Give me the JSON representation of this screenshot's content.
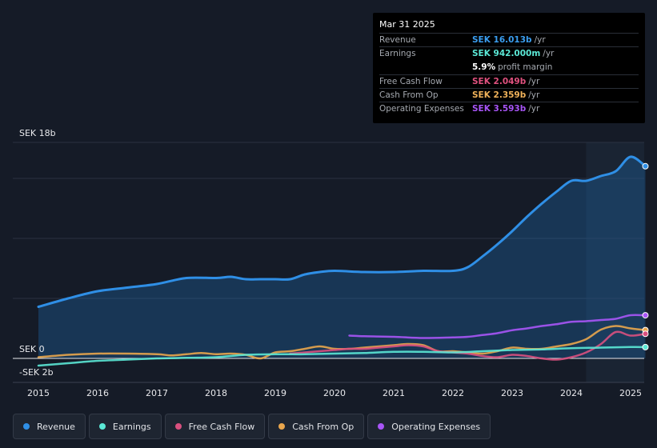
{
  "tooltip": {
    "date": "Mar 31 2025",
    "rows": [
      {
        "label": "Revenue",
        "value": "SEK 16.013b",
        "unit": "/yr",
        "color": "#3b9ef0"
      },
      {
        "label": "Earnings",
        "value": "SEK 942.000m",
        "unit": "/yr",
        "color": "#5be8d6"
      },
      {
        "label": "",
        "value": "5.9%",
        "unit": "profit margin",
        "color": "#ffffff"
      },
      {
        "label": "Free Cash Flow",
        "value": "SEK 2.049b",
        "unit": "/yr",
        "color": "#e0517f"
      },
      {
        "label": "Cash From Op",
        "value": "SEK 2.359b",
        "unit": "/yr",
        "color": "#f0b25a"
      },
      {
        "label": "Operating Expenses",
        "value": "SEK 3.593b",
        "unit": "/yr",
        "color": "#a855f7"
      }
    ]
  },
  "axis": {
    "top_label": "SEK 18b",
    "zero_label": "SEK 0",
    "bottom_label": "-SEK 2b"
  },
  "legend": [
    {
      "label": "Revenue",
      "color": "#2f8fe6"
    },
    {
      "label": "Earnings",
      "color": "#5be8d6"
    },
    {
      "label": "Free Cash Flow",
      "color": "#d9507f"
    },
    {
      "label": "Cash From Op",
      "color": "#e9a64d"
    },
    {
      "label": "Operating Expenses",
      "color": "#a855f7"
    }
  ],
  "chart_data": {
    "type": "line",
    "title": "",
    "xlabel": "",
    "ylabel": "SEK",
    "ylim": [
      -2,
      18
    ],
    "unit": "SEK billions",
    "x_ticks": [
      "2015",
      "2016",
      "2017",
      "2018",
      "2019",
      "2020",
      "2021",
      "2022",
      "2023",
      "2024",
      "2025"
    ],
    "forecast_from": 2024.25,
    "series": [
      {
        "name": "Revenue",
        "color": "#2f8fe6",
        "x": [
          2015.0,
          2015.5,
          2016.0,
          2016.5,
          2017.0,
          2017.5,
          2018.0,
          2018.25,
          2018.5,
          2018.75,
          2019.0,
          2019.25,
          2019.5,
          2019.75,
          2020.0,
          2020.5,
          2021.0,
          2021.5,
          2022.0,
          2022.25,
          2022.5,
          2022.75,
          2023.0,
          2023.25,
          2023.5,
          2023.75,
          2024.0,
          2024.25,
          2024.5,
          2024.75,
          2025.0,
          2025.25
        ],
        "y": [
          4.3,
          5.0,
          5.6,
          5.9,
          6.2,
          6.7,
          6.7,
          6.8,
          6.6,
          6.6,
          6.6,
          6.6,
          7.0,
          7.2,
          7.3,
          7.2,
          7.2,
          7.3,
          7.3,
          7.6,
          8.5,
          9.5,
          10.6,
          11.8,
          12.9,
          13.9,
          14.8,
          14.8,
          15.2,
          15.6,
          16.8,
          16.013
        ]
      },
      {
        "name": "Earnings",
        "color": "#5be8d6",
        "x": [
          2015.0,
          2015.5,
          2016.0,
          2016.5,
          2017.0,
          2017.5,
          2018.0,
          2018.5,
          2019.0,
          2019.5,
          2020.0,
          2020.5,
          2021.0,
          2021.5,
          2022.0,
          2022.5,
          2023.0,
          2023.5,
          2024.0,
          2024.5,
          2025.0,
          2025.25
        ],
        "y": [
          -0.6,
          -0.4,
          -0.2,
          -0.1,
          0.0,
          0.05,
          0.1,
          0.3,
          0.35,
          0.35,
          0.4,
          0.45,
          0.55,
          0.55,
          0.5,
          0.6,
          0.7,
          0.75,
          0.85,
          0.9,
          0.95,
          0.942
        ]
      },
      {
        "name": "Free Cash Flow",
        "color": "#d9507f",
        "x": [
          2019.25,
          2019.5,
          2019.75,
          2020.0,
          2020.25,
          2020.5,
          2020.75,
          2021.0,
          2021.25,
          2021.5,
          2021.75,
          2022.0,
          2022.25,
          2022.5,
          2022.75,
          2023.0,
          2023.25,
          2023.5,
          2023.75,
          2024.0,
          2024.25,
          2024.5,
          2024.75,
          2025.0,
          2025.25
        ],
        "y": [
          0.4,
          0.5,
          0.6,
          0.7,
          0.8,
          0.8,
          0.9,
          1.0,
          1.1,
          1.0,
          0.6,
          0.5,
          0.4,
          0.2,
          0.1,
          0.3,
          0.2,
          0.0,
          -0.1,
          0.1,
          0.5,
          1.2,
          2.2,
          1.9,
          2.049
        ]
      },
      {
        "name": "Cash From Op",
        "color": "#e9a64d",
        "x": [
          2015.0,
          2015.5,
          2016.0,
          2016.5,
          2017.0,
          2017.25,
          2017.5,
          2017.75,
          2018.0,
          2018.25,
          2018.5,
          2018.75,
          2019.0,
          2019.25,
          2019.5,
          2019.75,
          2020.0,
          2020.25,
          2020.5,
          2020.75,
          2021.0,
          2021.25,
          2021.5,
          2021.75,
          2022.0,
          2022.25,
          2022.5,
          2022.75,
          2023.0,
          2023.25,
          2023.5,
          2023.75,
          2024.0,
          2024.25,
          2024.5,
          2024.75,
          2025.0,
          2025.25
        ],
        "y": [
          0.1,
          0.3,
          0.4,
          0.4,
          0.35,
          0.25,
          0.35,
          0.45,
          0.35,
          0.4,
          0.3,
          0.0,
          0.5,
          0.6,
          0.8,
          1.0,
          0.8,
          0.8,
          0.9,
          1.0,
          1.1,
          1.2,
          1.1,
          0.6,
          0.6,
          0.5,
          0.4,
          0.6,
          0.9,
          0.8,
          0.8,
          1.0,
          1.2,
          1.6,
          2.4,
          2.7,
          2.5,
          2.359
        ]
      },
      {
        "name": "Operating Expenses",
        "color": "#a855f7",
        "x": [
          2020.25,
          2020.5,
          2021.0,
          2021.5,
          2022.0,
          2022.25,
          2022.5,
          2022.75,
          2023.0,
          2023.25,
          2023.5,
          2023.75,
          2024.0,
          2024.25,
          2024.5,
          2024.75,
          2025.0,
          2025.25
        ],
        "y": [
          1.9,
          1.85,
          1.8,
          1.7,
          1.75,
          1.8,
          1.95,
          2.1,
          2.35,
          2.5,
          2.7,
          2.85,
          3.05,
          3.1,
          3.2,
          3.3,
          3.6,
          3.593
        ]
      }
    ]
  }
}
